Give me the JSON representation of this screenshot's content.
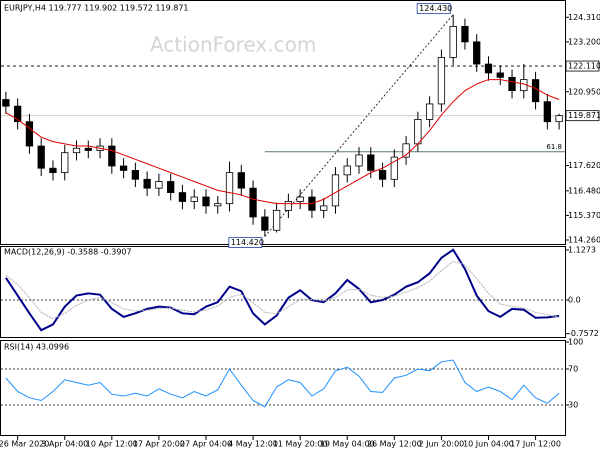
{
  "chart_data": [
    {
      "type": "candlestick",
      "title": "EURJPY,H4  119.777 119.902 119.572 119.871",
      "watermark": "ActionForex.com",
      "open": [
        120.6,
        120.3,
        119.6,
        118.5,
        117.5,
        117.3,
        118.2,
        118.4,
        118.3,
        118.5,
        117.6,
        117.4,
        117.0,
        116.6,
        116.9,
        116.4,
        116.0,
        116.2,
        115.8,
        115.9,
        117.3,
        116.6,
        115.3,
        114.7,
        115.6,
        116.0,
        116.2,
        115.6,
        115.8,
        117.2,
        117.6,
        118.1,
        117.4,
        117.0,
        118.0,
        118.6,
        119.7,
        120.4,
        122.5,
        123.9,
        123.2,
        122.2,
        121.8,
        121.6,
        121.0,
        121.5,
        120.5,
        119.6
      ],
      "high": [
        120.95,
        120.65,
        119.95,
        118.85,
        117.85,
        118.55,
        118.75,
        118.75,
        118.85,
        118.85,
        117.95,
        117.75,
        117.35,
        117.25,
        117.25,
        116.75,
        116.55,
        116.55,
        116.25,
        117.8,
        117.65,
        116.95,
        115.65,
        115.95,
        116.35,
        116.55,
        116.55,
        116.15,
        117.55,
        117.95,
        118.45,
        118.45,
        117.75,
        118.35,
        118.95,
        120.05,
        120.75,
        122.85,
        124.43,
        124.25,
        123.55,
        122.55,
        122.15,
        121.95,
        122.2,
        121.85,
        120.85,
        119.95
      ],
      "low": [
        119.95,
        119.25,
        118.15,
        117.15,
        116.95,
        116.95,
        117.85,
        117.95,
        117.95,
        117.25,
        117.05,
        116.65,
        116.25,
        116.25,
        116.05,
        115.65,
        115.65,
        115.45,
        115.45,
        115.55,
        116.25,
        114.95,
        114.42,
        114.6,
        115.25,
        115.65,
        115.25,
        115.25,
        115.45,
        116.85,
        117.25,
        117.05,
        116.65,
        116.65,
        117.65,
        118.25,
        119.35,
        120.05,
        122.15,
        122.85,
        121.85,
        121.45,
        121.25,
        120.65,
        120.65,
        120.15,
        119.25,
        119.25
      ],
      "close": [
        120.3,
        119.6,
        118.5,
        117.5,
        117.3,
        118.2,
        118.4,
        118.3,
        118.5,
        117.6,
        117.4,
        117.0,
        116.6,
        116.9,
        116.4,
        116.0,
        116.2,
        115.8,
        115.9,
        117.3,
        116.6,
        115.3,
        114.7,
        115.6,
        116.0,
        116.2,
        115.6,
        115.8,
        117.2,
        117.6,
        118.1,
        117.4,
        117.0,
        118.0,
        118.6,
        119.7,
        120.4,
        122.5,
        123.9,
        123.2,
        122.2,
        121.8,
        121.6,
        121.0,
        121.5,
        120.5,
        119.6,
        119.871
      ],
      "up_color": "#ffffff",
      "down_color": "#000000",
      "ma": {
        "color": "#e00000",
        "values": [
          120.0,
          119.7,
          119.3,
          118.9,
          118.7,
          118.6,
          118.5,
          118.5,
          118.4,
          118.3,
          118.1,
          117.9,
          117.7,
          117.5,
          117.3,
          117.1,
          116.9,
          116.7,
          116.5,
          116.4,
          116.3,
          116.1,
          116.0,
          115.9,
          115.9,
          115.9,
          115.9,
          116.1,
          116.4,
          116.7,
          117.0,
          117.3,
          117.5,
          117.8,
          118.1,
          118.6,
          119.2,
          119.9,
          120.5,
          121.0,
          121.3,
          121.5,
          121.5,
          121.4,
          121.3,
          121.1,
          120.8,
          120.6
        ]
      },
      "ylim": [
        114.08,
        125.0
      ],
      "yticks": [
        {
          "value": 124.31,
          "label": "124.310"
        },
        {
          "value": 123.2,
          "label": "123.200"
        },
        {
          "value": 120.95,
          "label": "120.950"
        },
        {
          "value": 117.62,
          "label": "117.620"
        },
        {
          "value": 116.48,
          "label": "116.480"
        },
        {
          "value": 115.37,
          "label": "115.370"
        },
        {
          "value": 114.26,
          "label": "114.260"
        }
      ],
      "hlines": [
        {
          "value": 122.11,
          "label": "122.110",
          "style": "dashed"
        },
        {
          "value": 119.871,
          "label": "119.871",
          "style": "solid"
        }
      ],
      "fib": {
        "value": 118.24,
        "label": "61.8",
        "color": "#5f7a6a"
      },
      "trend": {
        "from": {
          "index": 22,
          "value": 114.42,
          "label": "114.420"
        },
        "to": {
          "index": 38,
          "value": 124.43,
          "label": "124.430"
        }
      }
    },
    {
      "type": "line",
      "title": "MACD(12,26,9) -0.3588 -0.3907",
      "series": [
        {
          "color": "#00008b",
          "width": 2,
          "values": [
            0.5,
            0.1,
            -0.3,
            -0.68,
            -0.55,
            -0.15,
            0.1,
            0.15,
            0.12,
            -0.2,
            -0.38,
            -0.3,
            -0.2,
            -0.15,
            -0.17,
            -0.3,
            -0.32,
            -0.15,
            -0.05,
            0.3,
            0.2,
            -0.3,
            -0.55,
            -0.35,
            0.05,
            0.22,
            0.0,
            -0.05,
            0.15,
            0.45,
            0.25,
            -0.05,
            0.0,
            0.12,
            0.3,
            0.4,
            0.6,
            0.95,
            1.13,
            0.7,
            0.1,
            -0.25,
            -0.38,
            -0.2,
            -0.22,
            -0.4,
            -0.39,
            -0.3588
          ]
        },
        {
          "color": "#b0b0b0",
          "width": 1,
          "dash": true,
          "values": [
            0.55,
            0.35,
            0.05,
            -0.28,
            -0.42,
            -0.3,
            -0.12,
            0.0,
            0.06,
            -0.06,
            -0.2,
            -0.25,
            -0.23,
            -0.19,
            -0.18,
            -0.23,
            -0.27,
            -0.22,
            -0.14,
            0.06,
            0.13,
            -0.06,
            -0.28,
            -0.31,
            -0.15,
            0.02,
            0.01,
            -0.02,
            0.06,
            0.23,
            0.24,
            0.11,
            0.06,
            0.09,
            0.18,
            0.28,
            0.42,
            0.66,
            0.87,
            0.79,
            0.48,
            0.15,
            -0.09,
            -0.14,
            -0.18,
            -0.28,
            -0.33,
            -0.3907
          ]
        }
      ],
      "ylim": [
        -0.833,
        1.216
      ],
      "yticks": [
        1.1273,
        {
          "value": 0,
          "label": "0.0"
        },
        -0.7572
      ],
      "levels": [
        0
      ]
    },
    {
      "type": "line",
      "title": "RSI(14) 43.0996",
      "series": [
        {
          "color": "#1e90ff",
          "width": 1,
          "values": [
            60,
            45,
            38,
            35,
            45,
            58,
            55,
            52,
            55,
            42,
            40,
            43,
            40,
            48,
            42,
            38,
            45,
            40,
            47,
            70,
            52,
            35,
            28,
            50,
            58,
            55,
            40,
            48,
            68,
            72,
            62,
            45,
            44,
            60,
            63,
            70,
            68,
            78,
            80,
            55,
            45,
            50,
            45,
            36,
            52,
            38,
            32,
            43.0996
          ]
        }
      ],
      "ylim": [
        0,
        100
      ],
      "yticks": [
        100,
        70,
        30
      ],
      "levels": [
        70,
        30
      ],
      "categories": [
        null,
        "26 Mar 2020",
        null,
        null,
        null,
        "3 Apr 04:00",
        null,
        null,
        null,
        "10 Apr 12:00",
        null,
        null,
        null,
        "17 Apr 20:00",
        null,
        null,
        null,
        "27 Apr 04:00",
        null,
        null,
        null,
        "4 May 12:00",
        null,
        null,
        null,
        "11 May 20:00",
        null,
        null,
        null,
        "19 May 04:00",
        null,
        null,
        null,
        "26 May 12:00",
        null,
        null,
        null,
        "2 Jun 20:00",
        null,
        null,
        null,
        "10 Jun 04:00",
        null,
        null,
        null,
        "17 Jun 12:00",
        null,
        null
      ]
    }
  ]
}
